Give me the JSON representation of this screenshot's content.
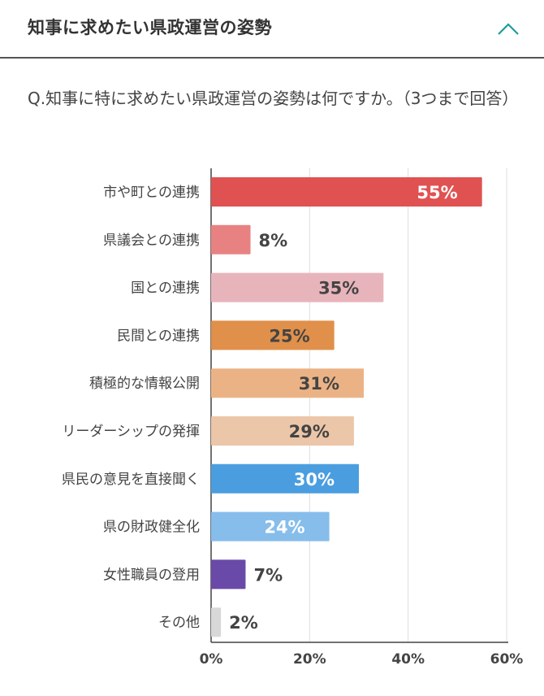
{
  "header": {
    "title": "知事に求めたい県政運営の姿勢",
    "collapse_icon": "chevron-up-icon",
    "accent_color": "#1a9e9a"
  },
  "question": "Q.知事に特に求めたい県政運営の姿勢は何ですか。（3つまで回答）",
  "chart_data": {
    "type": "bar",
    "orientation": "horizontal",
    "title": "",
    "xlabel": "",
    "ylabel": "",
    "xlim": [
      0,
      60
    ],
    "x_ticks": [
      "0%",
      "20%",
      "40%",
      "60%"
    ],
    "x_tick_values": [
      0,
      20,
      40,
      60
    ],
    "grid": true,
    "categories": [
      "市や町との連携",
      "県議会との連携",
      "国との連携",
      "民間との連携",
      "積極的な情報公開",
      "リーダーシップの発揮",
      "県民の意見を直接聞く",
      "県の財政健全化",
      "女性職員の登用",
      "その他"
    ],
    "values": [
      55,
      8,
      35,
      25,
      31,
      29,
      30,
      24,
      7,
      2
    ],
    "value_labels": [
      "55%",
      "8%",
      "35%",
      "25%",
      "31%",
      "29%",
      "30%",
      "24%",
      "7%",
      "2%"
    ],
    "colors": [
      "#e05252",
      "#e88282",
      "#e8b4bb",
      "#e0904a",
      "#ebb385",
      "#ecc6a8",
      "#4a9ee0",
      "#86bdeb",
      "#6a4aa8",
      "#d8d8d8"
    ],
    "label_inside_white": [
      true,
      false,
      false,
      false,
      false,
      false,
      true,
      true,
      false,
      false
    ]
  }
}
